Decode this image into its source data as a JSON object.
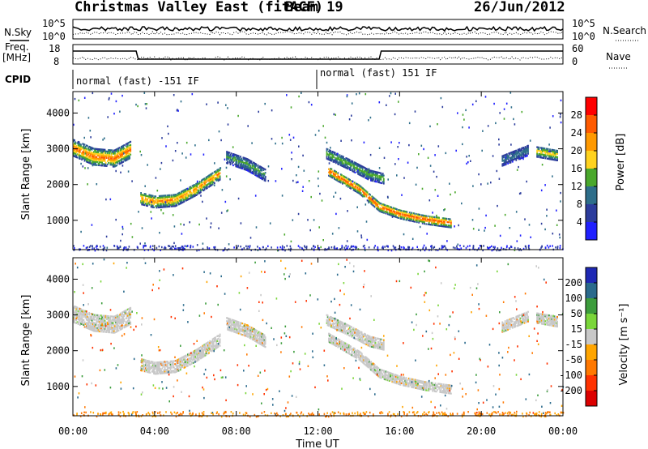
{
  "header": {
    "station": "Christmas Valley East (fitACF)",
    "beam": "Beam 19",
    "date": "26/Jun/2012"
  },
  "strip_labels": {
    "nsky": "N.Sky",
    "nsky_ticks": [
      "10^5",
      "10^0"
    ],
    "nsearch": "N.Search",
    "nsearch_ticks": [
      "10^5",
      "10^0"
    ],
    "freq": "Freq.",
    "freq_unit": "[MHz]",
    "freq_ticks": [
      "18",
      "8"
    ],
    "nave": "Nave",
    "nave_ticks": [
      "60",
      "0"
    ],
    "cpid": "CPID"
  },
  "cpid_segments": [
    {
      "label": "normal (fast) -151 IF",
      "start_hour": 0
    },
    {
      "label": "normal (fast) 151 IF",
      "start_hour": 12
    }
  ],
  "x_axis": {
    "title": "Time UT",
    "tick_labels": [
      "00:00",
      "04:00",
      "08:00",
      "12:00",
      "16:00",
      "20:00",
      "00:00"
    ]
  },
  "power_colorbar": {
    "title": "Power [dB]",
    "tick_labels": [
      "28",
      "24",
      "20",
      "16",
      "12",
      "8",
      "4"
    ],
    "colors": [
      "#ff0000",
      "#ff5a00",
      "#ff9900",
      "#ffd21e",
      "#4aa82c",
      "#2e6e8a",
      "#2c3c9c",
      "#2020ff"
    ]
  },
  "velocity_colorbar": {
    "title": "Velocity [m s⁻¹]",
    "tick_labels": [
      "200",
      "100",
      "50",
      "15",
      "-15",
      "-50",
      "-100",
      "-200"
    ],
    "colors": [
      "#1e28b4",
      "#2a6a8c",
      "#3c9c3c",
      "#7ad63a",
      "#c8c8c8",
      "#ffa500",
      "#ff7800",
      "#ff3200",
      "#dc0000"
    ]
  },
  "chart_data": [
    {
      "type": "heatmap",
      "title": "",
      "xlabel": "",
      "ylabel": "Slant Range [km]",
      "xlim": [
        0,
        24
      ],
      "ylim": [
        180,
        4600
      ],
      "y_tick_labels": [
        "1000",
        "2000",
        "3000",
        "4000"
      ],
      "y_ticks": [
        1000,
        2000,
        3000,
        4000
      ],
      "quantity": "Power [dB]",
      "bands": [
        {
          "name": "",
          "t": [
            0,
            1,
            2,
            2.8
          ],
          "r": [
            3050,
            2800,
            2750,
            3000
          ],
          "width": 450,
          "peak_db": 24
        },
        {
          "name": "",
          "t": [
            3.3,
            4,
            5,
            6,
            7.2
          ],
          "r": [
            1650,
            1550,
            1600,
            1900,
            2350
          ],
          "width": 350,
          "peak_db": 22
        },
        {
          "name": "",
          "t": [
            7.5,
            8.5,
            9.4
          ],
          "r": [
            2800,
            2600,
            2300
          ],
          "width": 350,
          "peak_db": 12
        },
        {
          "name": "",
          "t": [
            12.4,
            13.5,
            14.5,
            15.2
          ],
          "r": [
            2900,
            2600,
            2300,
            2200
          ],
          "width": 300,
          "peak_db": 14
        },
        {
          "name": "",
          "t": [
            12.5,
            14,
            15,
            16,
            17.2,
            18.5
          ],
          "r": [
            2400,
            1900,
            1400,
            1200,
            1050,
            950
          ],
          "width": 250,
          "peak_db": 26
        },
        {
          "name": "",
          "t": [
            21,
            22.3
          ],
          "r": [
            2700,
            3000
          ],
          "width": 300,
          "peak_db": 10
        },
        {
          "name": "",
          "t": [
            22.7,
            23.7
          ],
          "r": [
            2950,
            2850
          ],
          "width": 300,
          "peak_db": 18
        }
      ]
    },
    {
      "type": "heatmap",
      "title": "",
      "xlabel": "Time UT",
      "ylabel": "Slant Range [km]",
      "xlim": [
        0,
        24
      ],
      "ylim": [
        180,
        4600
      ],
      "y_tick_labels": [
        "1000",
        "2000",
        "3000",
        "4000"
      ],
      "y_ticks": [
        1000,
        2000,
        3000,
        4000
      ],
      "quantity": "Velocity [m s-1]",
      "dominant_velocity_ms": [
        -15,
        15
      ],
      "near_range_velocity_ms": -50
    }
  ]
}
